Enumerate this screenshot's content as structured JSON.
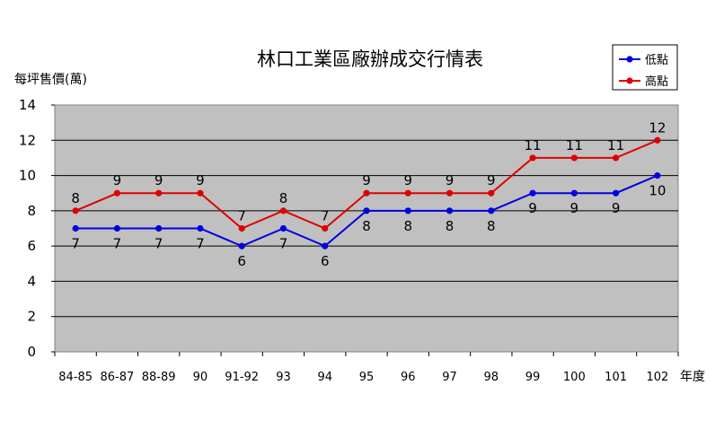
{
  "chart_data": {
    "type": "line",
    "title": "林口工業區廠辦成交行情表",
    "ylabel": "每坪售價(萬)",
    "xlabel": "年度",
    "categories": [
      "84-85",
      "86-87",
      "88-89",
      "90",
      "91-92",
      "93",
      "94",
      "95",
      "96",
      "97",
      "98",
      "99",
      "100",
      "101",
      "102"
    ],
    "ylim": [
      0,
      14
    ],
    "yticks": [
      0,
      2,
      4,
      6,
      8,
      10,
      12,
      14
    ],
    "grid": true,
    "legend_position": "top-right",
    "plot_background": "#C0C0C0",
    "series": [
      {
        "name": "低點",
        "color": "#0000E0",
        "label_position": "below",
        "values": [
          7,
          7,
          7,
          7,
          6,
          7,
          6,
          8,
          8,
          8,
          8,
          9,
          9,
          9,
          10
        ]
      },
      {
        "name": "高點",
        "color": "#E00000",
        "label_position": "above",
        "values": [
          8,
          9,
          9,
          9,
          7,
          8,
          7,
          9,
          9,
          9,
          9,
          11,
          11,
          11,
          12
        ]
      }
    ]
  }
}
